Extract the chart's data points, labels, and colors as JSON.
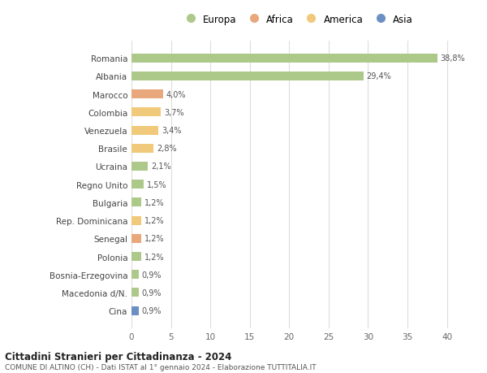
{
  "countries": [
    "Romania",
    "Albania",
    "Marocco",
    "Colombia",
    "Venezuela",
    "Brasile",
    "Ucraina",
    "Regno Unito",
    "Bulgaria",
    "Rep. Dominicana",
    "Senegal",
    "Polonia",
    "Bosnia-Erzegovina",
    "Macedonia d/N.",
    "Cina"
  ],
  "values": [
    38.8,
    29.4,
    4.0,
    3.7,
    3.4,
    2.8,
    2.1,
    1.5,
    1.2,
    1.2,
    1.2,
    1.2,
    0.9,
    0.9,
    0.9
  ],
  "labels": [
    "38,8%",
    "29,4%",
    "4,0%",
    "3,7%",
    "3,4%",
    "2,8%",
    "2,1%",
    "1,5%",
    "1,2%",
    "1,2%",
    "1,2%",
    "1,2%",
    "0,9%",
    "0,9%",
    "0,9%"
  ],
  "continents": [
    "Europa",
    "Europa",
    "Africa",
    "America",
    "America",
    "America",
    "Europa",
    "Europa",
    "Europa",
    "America",
    "Africa",
    "Europa",
    "Europa",
    "Europa",
    "Asia"
  ],
  "colors": {
    "Europa": "#adc98a",
    "Africa": "#e8a87c",
    "America": "#f0c97a",
    "Asia": "#6b8fc4"
  },
  "xlim": [
    0,
    42
  ],
  "xticks": [
    0,
    5,
    10,
    15,
    20,
    25,
    30,
    35,
    40
  ],
  "title": "Cittadini Stranieri per Cittadinanza - 2024",
  "subtitle": "COMUNE DI ALTINO (CH) - Dati ISTAT al 1° gennaio 2024 - Elaborazione TUTTITALIA.IT",
  "background_color": "#ffffff",
  "grid_color": "#dddddd",
  "bar_height": 0.5
}
